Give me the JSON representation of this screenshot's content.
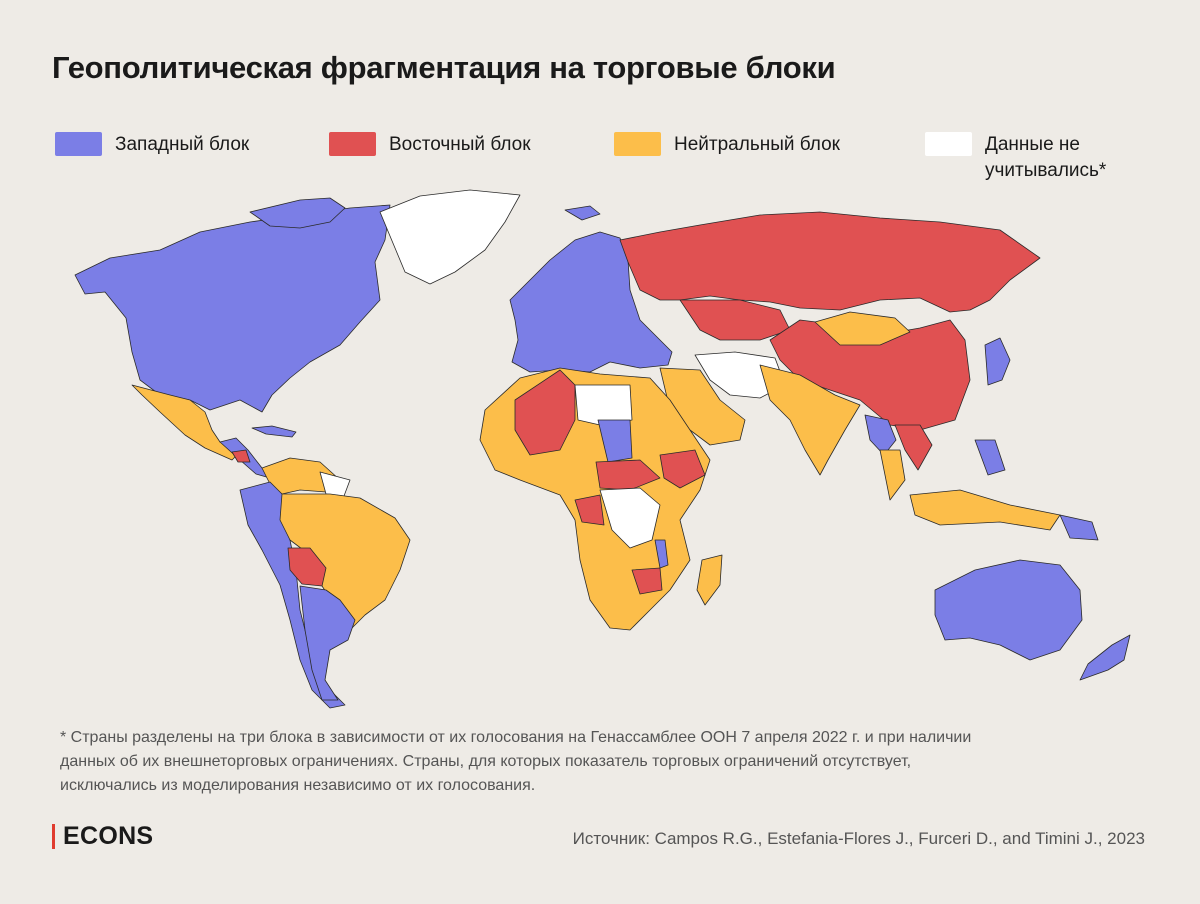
{
  "title": "Геополитическая фрагментация на торговые блоки",
  "colors": {
    "background": "#eeebe6",
    "western": "#7b7ee6",
    "eastern": "#e05152",
    "neutral": "#fcbe4a",
    "no_data": "#ffffff",
    "border": "#2a2a2a",
    "accent": "#e03c2f"
  },
  "legend": [
    {
      "key": "western",
      "label": "Западный блок"
    },
    {
      "key": "eastern",
      "label": "Восточный блок"
    },
    {
      "key": "neutral",
      "label": "Нейтральный блок"
    },
    {
      "key": "no_data",
      "label": "Данные не учитывались*"
    }
  ],
  "regions": {
    "western": [
      "USA",
      "Canada",
      "Europe",
      "Japan",
      "South Korea",
      "Australia",
      "New Zealand",
      "Argentina",
      "Chile",
      "Peru",
      "Colombia",
      "Ecuador",
      "Chad",
      "Malawi",
      "Philippines",
      "Myanmar",
      "Papua New Guinea",
      "Guatemala",
      "Cuba"
    ],
    "eastern": [
      "Russia",
      "China",
      "Algeria",
      "Mali",
      "Bolivia",
      "Ethiopia",
      "Eritrea",
      "Central African Republic",
      "Gabon",
      "Congo",
      "Zimbabwe",
      "Vietnam",
      "Laos",
      "Nicaragua",
      "Guinea",
      "Burundi"
    ],
    "neutral": [
      "Mexico",
      "Brazil",
      "Venezuela",
      "India",
      "Mongolia",
      "Indonesia",
      "Saudi Arabia",
      "Egypt",
      "Sudan",
      "Nigeria",
      "South Africa",
      "Angola",
      "Zambia",
      "Namibia",
      "Botswana",
      "Mozambique",
      "Madagascar",
      "Tanzania",
      "Kenya",
      "Morocco",
      "Uganda",
      "Thailand"
    ],
    "no_data": [
      "Greenland",
      "Iran",
      "Afghanistan",
      "Libya",
      "DR Congo",
      "Turkmenistan",
      "Guyana"
    ]
  },
  "footnote": "* Страны разделены на три блока в зависимости от их голосования на Генассамблее ООН 7 апреля 2022 г. и при наличии данных об их внешнеторговых ограничениях. Страны, для которых показатель торговых ограничений отсутствует, исключались из моделирования независимо от их голосования.",
  "brand": "ECONS",
  "source": "Источник: Campos R.G., Estefania-Flores J., Furceri D., and Timini J., 2023"
}
